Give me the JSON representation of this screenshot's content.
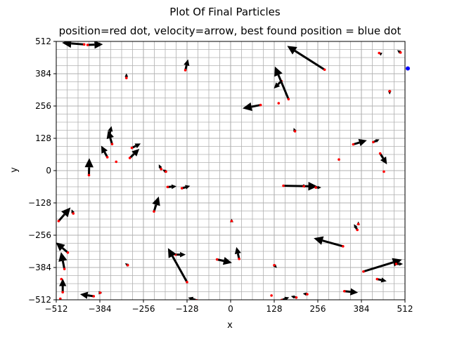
{
  "chart_data": {
    "type": "scatter",
    "suptitle": "Plot Of Final Particles",
    "title": "position=red dot, velocity=arrow, best found position = blue dot",
    "xlabel": "x",
    "ylabel": "y",
    "xlim": [
      -512,
      512
    ],
    "ylim": [
      -512,
      512
    ],
    "xticks": [
      -512,
      -384,
      -256,
      -128,
      0,
      128,
      256,
      384,
      512
    ],
    "yticks": [
      -512,
      -384,
      -256,
      -128,
      0,
      128,
      256,
      384,
      512
    ],
    "xtick_labels": [
      "−512",
      "−384",
      "−256",
      "−128",
      "0",
      "128",
      "256",
      "384",
      "512"
    ],
    "ytick_labels": [
      "−512",
      "−384",
      "−256",
      "−128",
      "0",
      "128",
      "256",
      "384",
      "512"
    ],
    "minor_grid_step": 32,
    "grid": true,
    "colors": {
      "position": "#ff0000",
      "velocity": "#000000",
      "best": "#0000ff",
      "grid": "#b0b0b0"
    },
    "best_position": {
      "x": 512,
      "y": 405
    },
    "particles": [
      {
        "x": -430,
        "y": 500,
        "vx": -65,
        "vy": 5
      },
      {
        "x": -420,
        "y": 498,
        "vx": 45,
        "vy": 2
      },
      {
        "x": 436,
        "y": 466,
        "vx": -2,
        "vy": 1
      },
      {
        "x": 499,
        "y": 468,
        "vx": -10,
        "vy": 7
      },
      {
        "x": 520,
        "y": 405,
        "vx": 0,
        "vy": 0
      },
      {
        "x": -306,
        "y": 367,
        "vx": 0,
        "vy": 14
      },
      {
        "x": -133,
        "y": 398,
        "vx": 8,
        "vy": 32
      },
      {
        "x": 276,
        "y": 400,
        "vx": -110,
        "vy": 70
      },
      {
        "x": 149,
        "y": 355,
        "vx": -22,
        "vy": -22
      },
      {
        "x": 170,
        "y": 283,
        "vx": -40,
        "vy": 96
      },
      {
        "x": 467,
        "y": 315,
        "vx": 0,
        "vy": -10
      },
      {
        "x": 88,
        "y": 260,
        "vx": -53,
        "vy": -10
      },
      {
        "x": 141,
        "y": 267,
        "vx": 0,
        "vy": 0
      },
      {
        "x": 189,
        "y": 156,
        "vx": -4,
        "vy": 10
      },
      {
        "x": -356,
        "y": 140,
        "vx": 6,
        "vy": 27
      },
      {
        "x": -348,
        "y": 105,
        "vx": -12,
        "vy": 40
      },
      {
        "x": 360,
        "y": 104,
        "vx": 40,
        "vy": 12
      },
      {
        "x": 419,
        "y": 113,
        "vx": 18,
        "vy": 8
      },
      {
        "x": -362,
        "y": 53,
        "vx": -18,
        "vy": 34
      },
      {
        "x": -336,
        "y": 35,
        "vx": 0,
        "vy": 0
      },
      {
        "x": -296,
        "y": 50,
        "vx": 28,
        "vy": 27
      },
      {
        "x": -290,
        "y": 90,
        "vx": 26,
        "vy": 13
      },
      {
        "x": -416,
        "y": -18,
        "vx": 1,
        "vy": 50
      },
      {
        "x": -204,
        "y": 6,
        "vx": -7,
        "vy": 14
      },
      {
        "x": -190,
        "y": -4,
        "vx": -10,
        "vy": 6
      },
      {
        "x": 318,
        "y": 44,
        "vx": 0,
        "vy": 0
      },
      {
        "x": 439,
        "y": 68,
        "vx": 20,
        "vy": -32
      },
      {
        "x": 450,
        "y": -4,
        "vx": 0,
        "vy": 0
      },
      {
        "x": -185,
        "y": -65,
        "vx": 26,
        "vy": 2
      },
      {
        "x": -143,
        "y": -70,
        "vx": 24,
        "vy": 7
      },
      {
        "x": -225,
        "y": -162,
        "vx": 14,
        "vy": 44
      },
      {
        "x": 155,
        "y": -60,
        "vx": 100,
        "vy": -2
      },
      {
        "x": 215,
        "y": -62,
        "vx": 4,
        "vy": -4
      },
      {
        "x": 250,
        "y": -67,
        "vx": 16,
        "vy": 0
      },
      {
        "x": -505,
        "y": -200,
        "vx": 35,
        "vy": 40
      },
      {
        "x": -462,
        "y": -170,
        "vx": -5,
        "vy": 12
      },
      {
        "x": 3,
        "y": -200,
        "vx": 0,
        "vy": 7
      },
      {
        "x": 372,
        "y": -235,
        "vx": -10,
        "vy": 17
      },
      {
        "x": 375,
        "y": -212,
        "vx": 0,
        "vy": 8
      },
      {
        "x": 330,
        "y": -300,
        "vx": -86,
        "vy": 24
      },
      {
        "x": -478,
        "y": -325,
        "vx": -35,
        "vy": 30
      },
      {
        "x": -488,
        "y": -390,
        "vx": -10,
        "vy": 50
      },
      {
        "x": -302,
        "y": -375,
        "vx": -8,
        "vy": 6
      },
      {
        "x": -162,
        "y": -333,
        "vx": 30,
        "vy": 0
      },
      {
        "x": -128,
        "y": -442,
        "vx": -56,
        "vy": 100
      },
      {
        "x": 25,
        "y": -350,
        "vx": -8,
        "vy": 35
      },
      {
        "x": -40,
        "y": -352,
        "vx": 44,
        "vy": -10
      },
      {
        "x": 128,
        "y": -375,
        "vx": 8,
        "vy": -8
      },
      {
        "x": 390,
        "y": -400,
        "vx": 113,
        "vy": 35
      },
      {
        "x": 486,
        "y": -370,
        "vx": 20,
        "vy": 0
      },
      {
        "x": 430,
        "y": -430,
        "vx": 28,
        "vy": -6
      },
      {
        "x": -493,
        "y": -482,
        "vx": 0,
        "vy": 40
      },
      {
        "x": -497,
        "y": -430,
        "vx": 0,
        "vy": 0
      },
      {
        "x": -402,
        "y": -498,
        "vx": -40,
        "vy": 6
      },
      {
        "x": -383,
        "y": -484,
        "vx": 6,
        "vy": 0
      },
      {
        "x": -500,
        "y": -508,
        "vx": 0,
        "vy": 0
      },
      {
        "x": -100,
        "y": -514,
        "vx": -25,
        "vy": 8
      },
      {
        "x": 120,
        "y": -495,
        "vx": 0,
        "vy": 0
      },
      {
        "x": 150,
        "y": -513,
        "vx": 22,
        "vy": 8
      },
      {
        "x": 193,
        "y": -503,
        "vx": -16,
        "vy": 4
      },
      {
        "x": 225,
        "y": -490,
        "vx": -13,
        "vy": 2
      },
      {
        "x": 334,
        "y": -478,
        "vx": 40,
        "vy": -4
      }
    ]
  }
}
